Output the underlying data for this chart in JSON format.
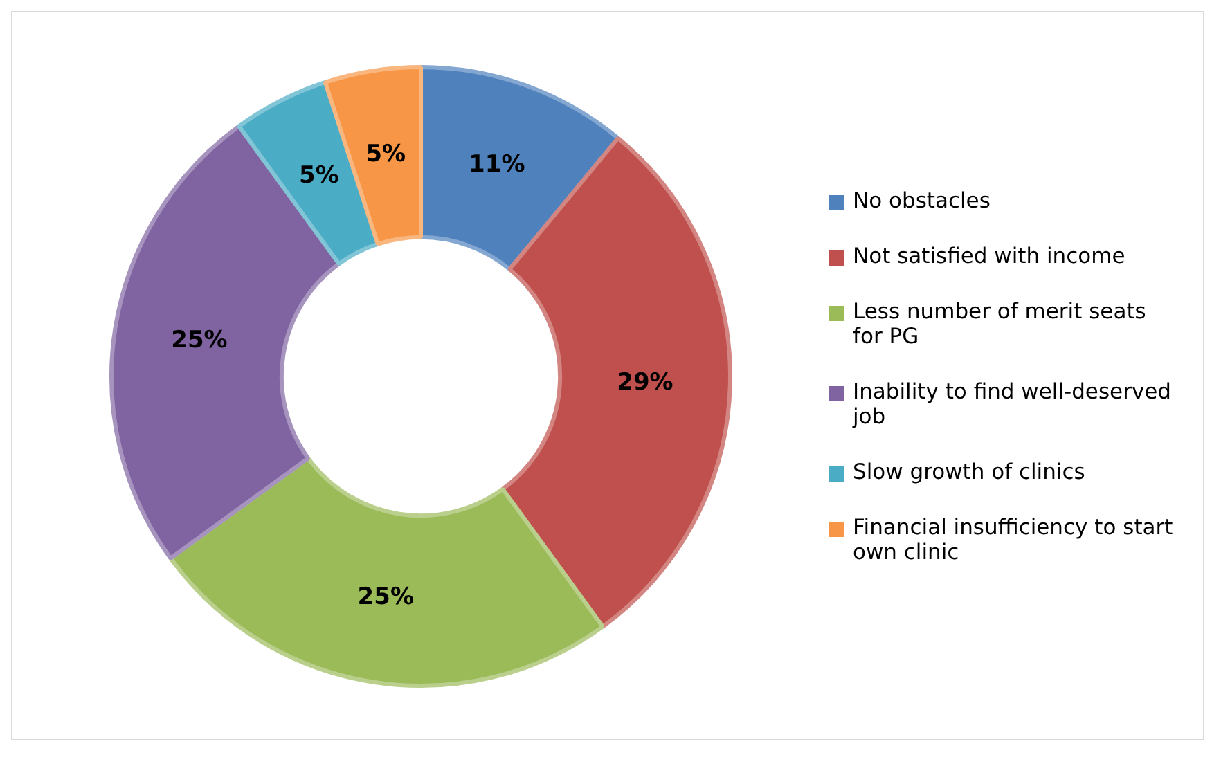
{
  "chart_data": {
    "type": "donut",
    "categories": [
      "No obstacles",
      "Not satisfied with income",
      "Less number of merit seats for PG",
      "Inability to find well-deserved job",
      "Slow growth of clinics",
      "Financial insufficiency to start own clinic"
    ],
    "values": [
      11,
      29,
      25,
      25,
      5,
      5
    ],
    "colors": [
      "#4f81bd",
      "#c0504d",
      "#9bbb59",
      "#8064a2",
      "#4bacc6",
      "#f79646"
    ],
    "value_labels": [
      "11%",
      "29%",
      "25%",
      "25%",
      "5%",
      "5%"
    ],
    "legend": "right"
  }
}
